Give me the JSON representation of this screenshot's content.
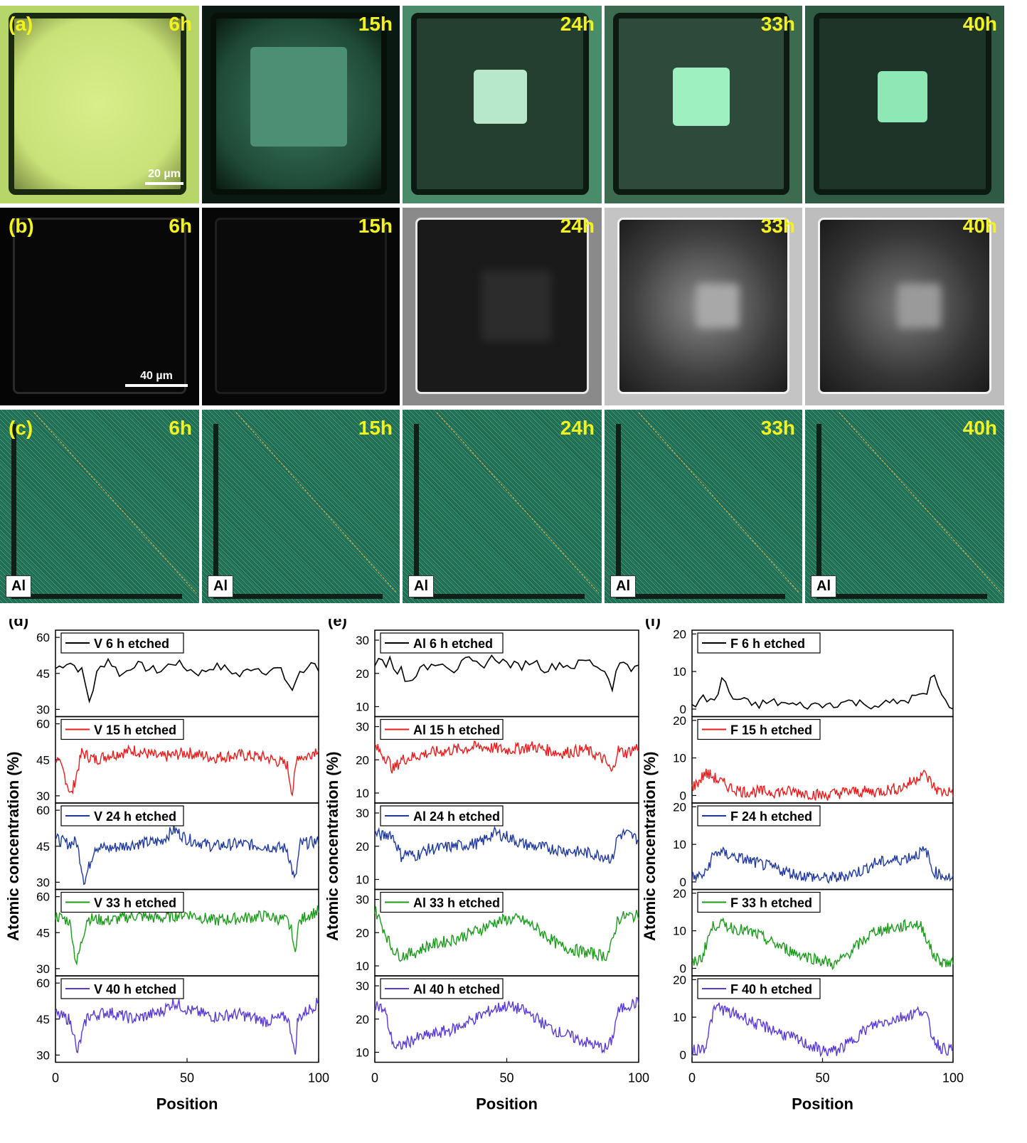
{
  "rows": [
    {
      "panel": "(a)",
      "hours": [
        "6h",
        "15h",
        "24h",
        "33h",
        "40h"
      ],
      "scale": "20 µm"
    },
    {
      "panel": "(b)",
      "hours": [
        "6h",
        "15h",
        "24h",
        "33h",
        "40h"
      ],
      "scale": "40 µm"
    },
    {
      "panel": "(c)",
      "hours": [
        "6h",
        "15h",
        "24h",
        "33h",
        "40h"
      ],
      "element": "Al"
    }
  ],
  "colors": {
    "h6": "#000000",
    "h15": "#e81c1c",
    "h24": "#1f3a9c",
    "h33": "#1c9a1c",
    "h40": "#5a3ad6",
    "label": "#f2f21e"
  },
  "chart_data": [
    {
      "type": "line",
      "panel": "(d)",
      "ylabel": "Atomic concentration (%)",
      "xlabel": "Position",
      "xlim": [
        0,
        100
      ],
      "xticks": [
        0,
        50,
        100
      ],
      "yticks": [
        30,
        45,
        60
      ],
      "ylim": [
        27,
        63
      ],
      "series": [
        {
          "name": "V 6 h etched",
          "x": [
            0,
            5,
            10,
            13,
            16,
            20,
            25,
            30,
            35,
            40,
            45,
            50,
            55,
            60,
            65,
            70,
            75,
            80,
            85,
            90,
            92,
            95,
            98,
            100
          ],
          "y": [
            47,
            50,
            46,
            33,
            46,
            51,
            44,
            49,
            47,
            46,
            50,
            47,
            45,
            48,
            47,
            44,
            48,
            46,
            47,
            38,
            44,
            46,
            52,
            45
          ]
        },
        {
          "name": "V 15 h etched",
          "x": [
            0,
            3,
            6,
            10,
            15,
            20,
            30,
            40,
            50,
            60,
            70,
            80,
            88,
            90,
            92,
            95,
            100
          ],
          "y": [
            46,
            40,
            30,
            48,
            45,
            47,
            49,
            46,
            48,
            46,
            47,
            46,
            43,
            31,
            47,
            46,
            50
          ]
        },
        {
          "name": "V 24 h etched",
          "x": [
            0,
            5,
            8,
            10,
            11,
            15,
            20,
            30,
            40,
            45,
            50,
            60,
            70,
            80,
            88,
            91,
            93,
            100
          ],
          "y": [
            48,
            46,
            47,
            36,
            30,
            45,
            44,
            46,
            47,
            52,
            48,
            45,
            46,
            45,
            44,
            30,
            46,
            47
          ]
        },
        {
          "name": "V 33 h etched",
          "x": [
            0,
            5,
            6,
            7,
            8,
            12,
            20,
            30,
            40,
            50,
            60,
            70,
            80,
            88,
            90,
            91,
            92,
            95,
            100
          ],
          "y": [
            52,
            50,
            47,
            38,
            32,
            51,
            50,
            52,
            51,
            53,
            50,
            51,
            52,
            50,
            45,
            34,
            48,
            52,
            54
          ]
        },
        {
          "name": "V 40 h etched",
          "x": [
            0,
            5,
            7,
            8,
            12,
            20,
            30,
            40,
            45,
            50,
            60,
            70,
            80,
            88,
            90,
            91,
            92,
            95,
            100
          ],
          "y": [
            47,
            45,
            40,
            30,
            46,
            48,
            45,
            48,
            52,
            49,
            46,
            47,
            44,
            46,
            38,
            28,
            45,
            48,
            52
          ]
        }
      ]
    },
    {
      "type": "line",
      "panel": "(e)",
      "ylabel": "Atomic concentration (%)",
      "xlabel": "Position",
      "xlim": [
        0,
        100
      ],
      "xticks": [
        0,
        50,
        100
      ],
      "yticks": [
        10,
        20,
        30
      ],
      "ylim": [
        7,
        33
      ],
      "series": [
        {
          "name": "Al 6 h etched",
          "x": [
            0,
            2,
            4,
            6,
            8,
            10,
            12,
            15,
            20,
            25,
            30,
            35,
            40,
            45,
            50,
            55,
            60,
            65,
            70,
            75,
            80,
            85,
            88,
            90,
            92,
            95,
            98,
            100
          ],
          "y": [
            23,
            26,
            22,
            25,
            18,
            23,
            16,
            20,
            22,
            24,
            21,
            24,
            22,
            25,
            23,
            22,
            24,
            21,
            23,
            22,
            24,
            22,
            20,
            16,
            22,
            24,
            21,
            22
          ]
        },
        {
          "name": "Al 15 h etched",
          "x": [
            0,
            5,
            7,
            10,
            15,
            20,
            30,
            40,
            50,
            60,
            70,
            80,
            87,
            90,
            92,
            95,
            100
          ],
          "y": [
            24,
            20,
            17,
            20,
            21,
            22,
            23,
            24,
            23,
            24,
            22,
            23,
            20,
            16,
            23,
            22,
            24
          ]
        },
        {
          "name": "Al 24 h etched",
          "x": [
            0,
            3,
            6,
            8,
            10,
            12,
            15,
            20,
            30,
            40,
            45,
            50,
            55,
            60,
            70,
            80,
            88,
            90,
            92,
            95,
            100
          ],
          "y": [
            24,
            23,
            24,
            21,
            17,
            18,
            17,
            19,
            20,
            21,
            24,
            23,
            21,
            20,
            19,
            18,
            17,
            16,
            23,
            24,
            22
          ]
        },
        {
          "name": "Al 33 h etched",
          "x": [
            0,
            4,
            6,
            8,
            10,
            15,
            20,
            30,
            40,
            45,
            50,
            55,
            60,
            65,
            70,
            80,
            88,
            90,
            92,
            95,
            100
          ],
          "y": [
            27,
            20,
            16,
            14,
            13,
            14,
            16,
            18,
            21,
            23,
            24,
            24,
            22,
            19,
            16,
            14,
            13,
            17,
            24,
            25,
            25
          ]
        },
        {
          "name": "Al 40 h etched",
          "x": [
            0,
            4,
            6,
            8,
            10,
            15,
            20,
            30,
            40,
            45,
            50,
            55,
            60,
            65,
            70,
            80,
            88,
            90,
            92,
            95,
            100
          ],
          "y": [
            25,
            22,
            15,
            11,
            12,
            14,
            15,
            17,
            21,
            23,
            24,
            23,
            21,
            18,
            16,
            13,
            11,
            14,
            22,
            24,
            25
          ]
        }
      ]
    },
    {
      "type": "line",
      "panel": "(f)",
      "ylabel": "Atomic concentration (%)",
      "xlabel": "Position",
      "xlim": [
        0,
        100
      ],
      "xticks": [
        0,
        50,
        100
      ],
      "yticks": [
        0,
        10,
        20
      ],
      "ylim": [
        -2,
        21
      ],
      "series": [
        {
          "name": "F 6 h etched",
          "x": [
            0,
            5,
            8,
            10,
            12,
            15,
            20,
            25,
            30,
            40,
            50,
            60,
            70,
            80,
            85,
            88,
            90,
            92,
            95,
            98,
            100
          ],
          "y": [
            1,
            3,
            2,
            4,
            9,
            3,
            2,
            1,
            2,
            1,
            1,
            2,
            1,
            2,
            3,
            4,
            3,
            11,
            4,
            1,
            1
          ]
        },
        {
          "name": "F 15 h etched",
          "x": [
            0,
            3,
            5,
            8,
            10,
            15,
            20,
            30,
            40,
            50,
            60,
            70,
            80,
            85,
            88,
            90,
            93,
            95,
            100
          ],
          "y": [
            2,
            4,
            6,
            5,
            4,
            2,
            1,
            1,
            1,
            0,
            1,
            1,
            2,
            4,
            6,
            5,
            2,
            1,
            1
          ]
        },
        {
          "name": "F 24 h etched",
          "x": [
            0,
            5,
            8,
            10,
            15,
            20,
            25,
            30,
            40,
            50,
            55,
            60,
            65,
            70,
            80,
            85,
            88,
            90,
            92,
            95,
            100
          ],
          "y": [
            1,
            2,
            7,
            8,
            7,
            6,
            5,
            4,
            2,
            1,
            1,
            2,
            3,
            5,
            6,
            7,
            8,
            8,
            3,
            2,
            1
          ]
        },
        {
          "name": "F 33 h etched",
          "x": [
            0,
            4,
            6,
            8,
            10,
            15,
            20,
            25,
            30,
            40,
            50,
            55,
            60,
            65,
            70,
            80,
            85,
            88,
            90,
            92,
            95,
            100
          ],
          "y": [
            1,
            3,
            8,
            11,
            12,
            11,
            10,
            9,
            7,
            4,
            2,
            1,
            4,
            7,
            10,
            11,
            12,
            11,
            8,
            4,
            2,
            1
          ]
        },
        {
          "name": "F 40 h etched",
          "x": [
            0,
            5,
            8,
            10,
            12,
            15,
            20,
            25,
            30,
            40,
            50,
            55,
            60,
            65,
            70,
            80,
            85,
            88,
            90,
            92,
            95,
            100
          ],
          "y": [
            1,
            2,
            11,
            13,
            12,
            11,
            10,
            8,
            7,
            4,
            1,
            1,
            3,
            6,
            8,
            10,
            11,
            12,
            10,
            5,
            2,
            1
          ]
        }
      ]
    }
  ]
}
